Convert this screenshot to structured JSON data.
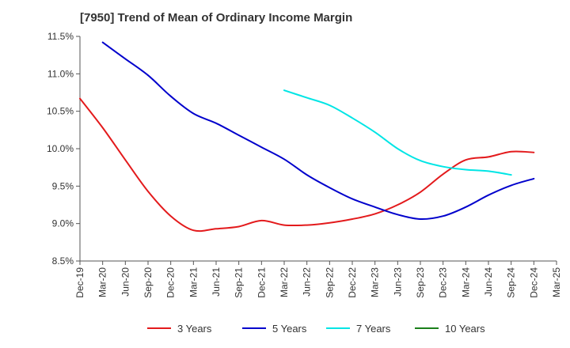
{
  "chart_data": {
    "type": "line",
    "title": "[7950]  Trend of Mean of Ordinary Income Margin",
    "xlabel": "",
    "ylabel": "",
    "ylim": [
      8.5,
      11.5
    ],
    "yticks": [
      "8.5%",
      "9.0%",
      "9.5%",
      "10.0%",
      "10.5%",
      "11.0%",
      "11.5%"
    ],
    "xticks": [
      "Dec-19",
      "Mar-20",
      "Jun-20",
      "Sep-20",
      "Dec-20",
      "Mar-21",
      "Jun-21",
      "Sep-21",
      "Dec-21",
      "Mar-22",
      "Jun-22",
      "Sep-22",
      "Dec-22",
      "Mar-23",
      "Jun-23",
      "Sep-23",
      "Dec-23",
      "Mar-24",
      "Jun-24",
      "Sep-24",
      "Dec-24",
      "Mar-25"
    ],
    "grid": false,
    "legend_position": "bottom",
    "series": [
      {
        "name": "3 Years",
        "color": "#e31a1c",
        "start": 0,
        "values": [
          10.67,
          10.28,
          9.85,
          9.43,
          9.1,
          8.91,
          8.93,
          8.96,
          9.04,
          8.98,
          8.98,
          9.01,
          9.06,
          9.13,
          9.25,
          9.42,
          9.66,
          9.85,
          9.89,
          9.96,
          9.95
        ]
      },
      {
        "name": "5 Years",
        "color": "#0000cc",
        "start": 1,
        "values": [
          11.42,
          11.2,
          10.98,
          10.7,
          10.47,
          10.34,
          10.18,
          10.02,
          9.86,
          9.65,
          9.48,
          9.33,
          9.22,
          9.12,
          9.06,
          9.1,
          9.22,
          9.38,
          9.51,
          9.6
        ]
      },
      {
        "name": "7 Years",
        "color": "#00e5e5",
        "start": 9,
        "values": [
          10.78,
          10.68,
          10.58,
          10.41,
          10.22,
          10.0,
          9.84,
          9.76,
          9.72,
          9.7,
          9.65
        ]
      },
      {
        "name": "10 Years",
        "color": "#1a7f1a",
        "start": 0,
        "values": []
      }
    ]
  }
}
